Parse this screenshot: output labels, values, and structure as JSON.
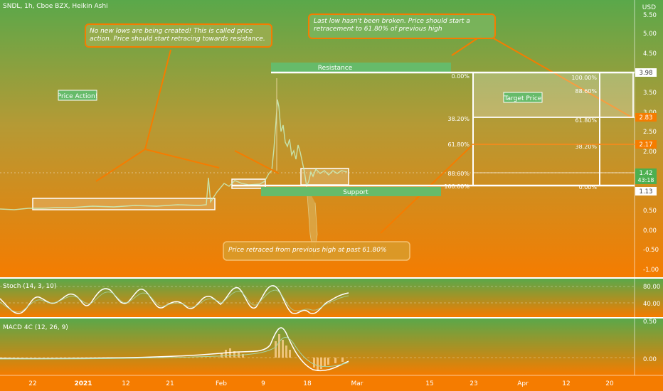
{
  "header": {
    "title": "SNDL, 1h, Cboe BZX, Heikin Ashi",
    "currency": "USD"
  },
  "annotations": {
    "note1": "No new lows are being created! This is called price action. Price should start retracing towards resistance.",
    "note2": "Last low hasn't been broken. Price should start a retracement to 61.80% of previous high",
    "note3": "Price retraced from previous high at past 61.80%",
    "price_action_label": "Price Action!",
    "target_label": "Target Price",
    "resistance_label": "Resistance",
    "support_label": "Support"
  },
  "fib_left": {
    "labels": [
      "0.00%",
      "38.20%",
      "61.80%",
      "88.60%",
      "100.00%"
    ]
  },
  "fib_right": {
    "labels": [
      "100.00%",
      "88.60%",
      "61.80%",
      "38.20%",
      "0.00%"
    ]
  },
  "price_axis": {
    "ticks": [
      "5.50",
      "5.00",
      "4.50",
      "4.00",
      "3.50",
      "3.00",
      "2.50",
      "2.00",
      "1.50",
      "1.00",
      "0.50",
      "0.00",
      "-0.50",
      "-1.00"
    ],
    "tags": [
      {
        "text": "3.98",
        "color": "#ffffff"
      },
      {
        "text": "2.83",
        "color": "#f57c00"
      },
      {
        "text": "2.17",
        "color": "#f57c00"
      },
      {
        "text": "1.42",
        "color": "#4caf50"
      },
      {
        "text": "43:18",
        "color": "#4caf50"
      },
      {
        "text": "1.13",
        "color": "#ffffff"
      }
    ]
  },
  "stoch": {
    "title": "Stoch (14, 3, 10)",
    "ticks": [
      "80.00",
      "40.00"
    ]
  },
  "macd": {
    "title": "MACD 4C (12, 26, 9)",
    "ticks": [
      "0.50",
      "0.00"
    ]
  },
  "time_axis": {
    "labels": [
      "22",
      "2021",
      "12",
      "21",
      "Feb",
      "9",
      "18",
      "Mar",
      "15",
      "23",
      "Apr",
      "12",
      "20"
    ]
  },
  "colors": {
    "bg_top": "#5aa84a",
    "bg_bottom": "#f57c00",
    "accent_orange": "#f5a742",
    "label_green": "#66bb6a"
  }
}
